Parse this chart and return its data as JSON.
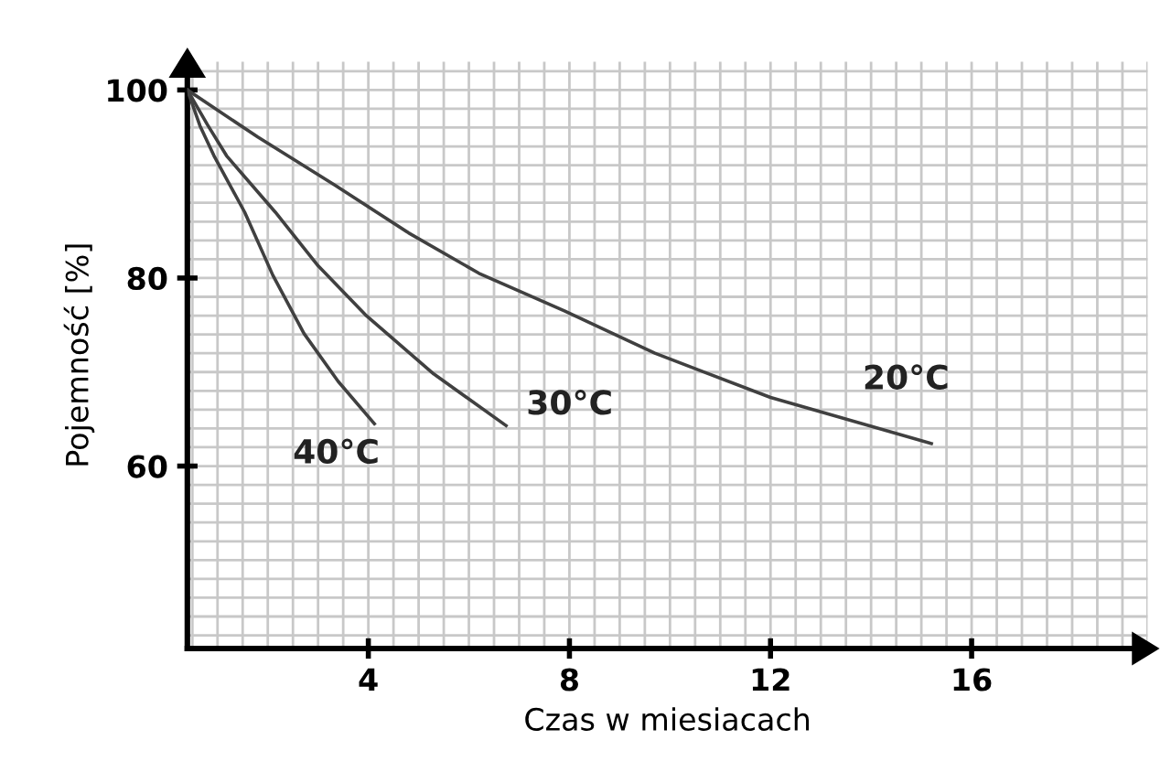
{
  "chart_data": {
    "type": "line",
    "xlabel": "Czas w miesiacach",
    "ylabel": "Pojemność [%]",
    "xlim": [
      0.4,
      19.5
    ],
    "ylim": [
      40.6,
      103
    ],
    "xticks": [
      4,
      8,
      12,
      16
    ],
    "yticks": [
      60,
      80,
      100
    ],
    "grid": true,
    "legend": false,
    "marker": "none",
    "line_style": "solid",
    "series": [
      {
        "name": "20°C",
        "color": "#404040",
        "x": [
          0.4,
          1.8,
          3.33,
          4.8,
          6.2,
          7.9,
          9.7,
          12.0,
          15.2
        ],
        "values": [
          100,
          95,
          89.9,
          84.8,
          80.5,
          76.5,
          72,
          67.3,
          62.4
        ]
      },
      {
        "name": "30°C",
        "color": "#404040",
        "x": [
          0.4,
          0.8,
          1.18,
          2.15,
          3.0,
          3.94,
          5.3,
          6.74
        ],
        "values": [
          100,
          96.3,
          93,
          87,
          81.3,
          76.1,
          69.8,
          64.3
        ]
      },
      {
        "name": "40°C",
        "color": "#404040",
        "x": [
          0.4,
          0.65,
          0.93,
          1.54,
          2.1,
          2.72,
          3.4,
          4.12
        ],
        "values": [
          100,
          96.2,
          93,
          87,
          80.3,
          74.1,
          69,
          64.5
        ]
      }
    ]
  }
}
